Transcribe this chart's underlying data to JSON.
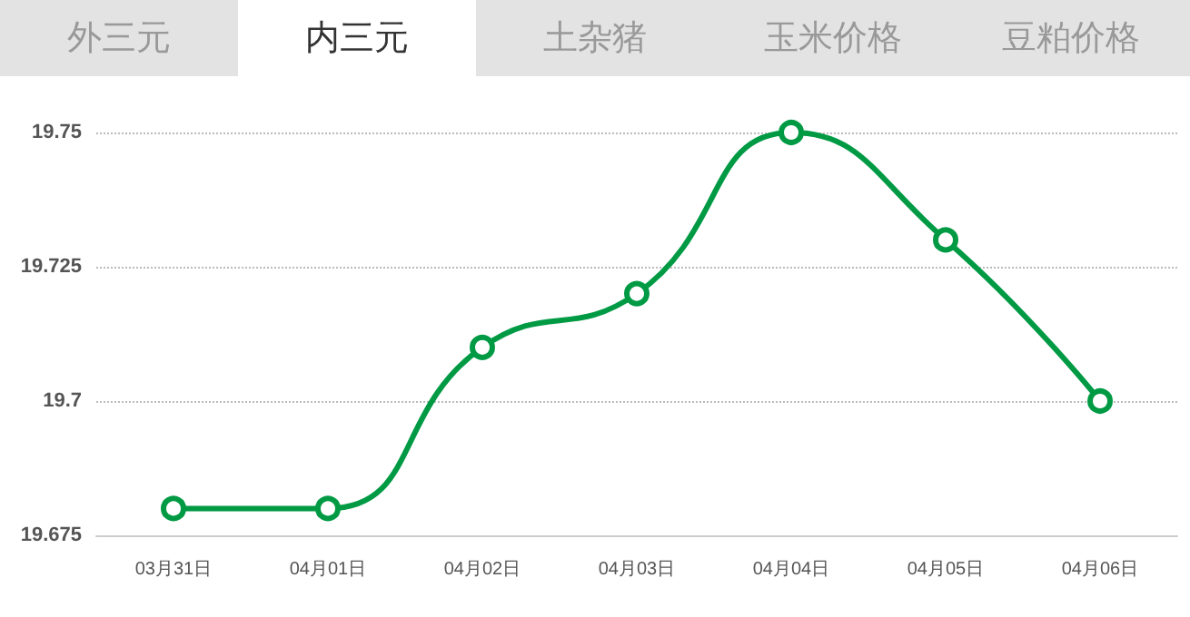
{
  "chart_data": {
    "type": "line",
    "annotations": [
      "外三元",
      "内三元",
      "土杂猪",
      "玉米价格",
      "豆粕价格"
    ],
    "categories": [
      "03月31日",
      "04月01日",
      "04月02日",
      "04月03日",
      "04月04日",
      "04月05日",
      "04月06日"
    ],
    "series": [
      {
        "color": "#009a44",
        "values": [
          19.68,
          19.68,
          19.71,
          19.72,
          19.75,
          19.73,
          19.7
        ]
      }
    ],
    "ylim": [
      19.675,
      19.75
    ],
    "yticks": [
      19.675,
      19.7,
      19.725,
      19.75
    ],
    "grid": "y",
    "marker": "circle",
    "line_style": "solid"
  }
}
